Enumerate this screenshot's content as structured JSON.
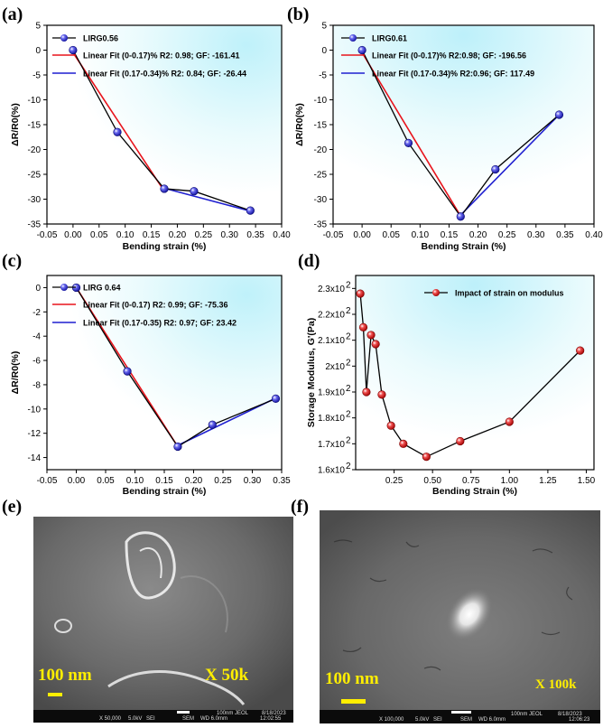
{
  "panel_labels": [
    "(a)",
    "(b)",
    "(c)",
    "(d)",
    "(e)",
    "(f)"
  ],
  "colors": {
    "marker_blue": "#2b2bd6",
    "marker_red": "#e31b1b",
    "fit_red": "#e8141c",
    "fit_blue": "#1f1fd0",
    "bg_glow": "#bff1fa",
    "scale_text": "#ffee00"
  },
  "chart_data": [
    {
      "type": "line",
      "panel": "(a)",
      "xlabel": "Bending strain (%)",
      "ylabel": "ΔR/R0(%)",
      "xlim": [
        -0.05,
        0.4
      ],
      "ylim": [
        -35,
        5
      ],
      "xticks": [
        "-0.05",
        "0.00",
        "0.05",
        "0.10",
        "0.15",
        "0.20",
        "0.25",
        "0.30",
        "0.35",
        "0.40"
      ],
      "yticks": [
        "5",
        "0",
        "-5",
        "-10",
        "-15",
        "-20",
        "-25",
        "-30",
        "-35"
      ],
      "series": [
        {
          "name": "LIRG0.56",
          "x": [
            0.0,
            0.085,
            0.175,
            0.232,
            0.34
          ],
          "y": [
            0.0,
            -16.5,
            -27.9,
            -28.4,
            -32.3
          ]
        }
      ],
      "fits": [
        {
          "name": "Linear Fit (0-0.17)% R2: 0.98; GF: -161.41",
          "x": [
            0.0,
            0.175
          ],
          "y": [
            -0.5,
            -28.4
          ]
        },
        {
          "name": "Linear Fit (0.17-0.34)% R2: 0.84; GF: -26.44",
          "x": [
            0.175,
            0.34
          ],
          "y": [
            -27.8,
            -32.4
          ]
        }
      ]
    },
    {
      "type": "line",
      "panel": "(b)",
      "xlabel": "Bending Strain (%)",
      "ylabel": "ΔR/R0(%)",
      "xlim": [
        -0.05,
        0.4
      ],
      "ylim": [
        -35,
        5
      ],
      "xticks": [
        "-0.05",
        "0.00",
        "0.05",
        "0.10",
        "0.15",
        "0.20",
        "0.25",
        "0.30",
        "0.35",
        "0.40"
      ],
      "yticks": [
        "5",
        "0",
        "-5",
        "-10",
        "-15",
        "-20",
        "-25",
        "-30",
        "-35"
      ],
      "series": [
        {
          "name": "LIRG0.61",
          "x": [
            0.0,
            0.08,
            0.17,
            0.23,
            0.34
          ],
          "y": [
            0.0,
            -18.7,
            -33.5,
            -24.0,
            -13.0
          ]
        }
      ],
      "fits": [
        {
          "name": "Linear Fit (0-0.17)% R2:0.98; GF: -196.56",
          "x": [
            0.0,
            0.17
          ],
          "y": [
            -0.5,
            -33.4
          ]
        },
        {
          "name": "Linear Fit (0.17-0.34)% R2:0.96; GF: 117.49",
          "x": [
            0.17,
            0.34
          ],
          "y": [
            -33.2,
            -13.0
          ]
        }
      ]
    },
    {
      "type": "line",
      "panel": "(c)",
      "xlabel": "Bending strain (%)",
      "ylabel": "ΔR/R0(%)",
      "xlim": [
        -0.05,
        0.35
      ],
      "ylim": [
        -15,
        1
      ],
      "xticks": [
        "-0.05",
        "0.00",
        "0.05",
        "0.10",
        "0.15",
        "0.20",
        "0.25",
        "0.30",
        "0.35"
      ],
      "yticks": [
        "0",
        "-2",
        "-4",
        "-6",
        "-8",
        "-10",
        "-12",
        "-14"
      ],
      "series": [
        {
          "name": "LIRG 0.64",
          "x": [
            0.0,
            0.087,
            0.173,
            0.232,
            0.34
          ],
          "y": [
            0.0,
            -6.9,
            -13.1,
            -11.3,
            -9.15
          ]
        }
      ],
      "fits": [
        {
          "name": "Linear Fit (0-0.17) R2: 0.99; GF: -75.36",
          "x": [
            0.0,
            0.173
          ],
          "y": [
            0.0,
            -13.1
          ]
        },
        {
          "name": "Linear Fit (0.17-0.35) R2: 0.97; GF: 23.42",
          "x": [
            0.173,
            0.34
          ],
          "y": [
            -13.0,
            -9.1
          ]
        }
      ]
    },
    {
      "type": "line",
      "panel": "(d)",
      "xlabel": "Bending Strain (%)",
      "ylabel": "Storage Modulus, G'(Pa)",
      "xlim": [
        0.0,
        1.55
      ],
      "ylim": [
        160,
        235
      ],
      "xticks": [
        "0.25",
        "0.50",
        "0.75",
        "1.00",
        "1.25",
        "1.50"
      ],
      "ytick_values": [
        230,
        220,
        210,
        200,
        190,
        180,
        170,
        160
      ],
      "ytick_base": "2.30",
      "ytick_labels": [
        "2.3x10",
        "2.2x10",
        "2.1x10",
        "2x10",
        "1.9x10",
        "1.8x10",
        "1.7x10",
        "1.6x10"
      ],
      "ytick_exp": "2",
      "series": [
        {
          "name": "Impact of strain on modulus",
          "x": [
            0.03,
            0.05,
            0.07,
            0.1,
            0.13,
            0.17,
            0.23,
            0.31,
            0.46,
            0.68,
            1.0,
            1.46
          ],
          "y": [
            228,
            215,
            190,
            212,
            208.5,
            189,
            177,
            170,
            165,
            171,
            178.5,
            206
          ]
        }
      ]
    }
  ],
  "sem": [
    {
      "panel": "(e)",
      "scale_text": "100 nm",
      "mag_text": "X 50k",
      "footer": [
        "X 50,000",
        "5.0kV",
        "SEI",
        "SEM",
        "WD 6.0mm",
        "12:02:55",
        "100nm JEOL",
        "8/18/2023"
      ]
    },
    {
      "panel": "(f)",
      "scale_text": "100 nm",
      "mag_text": "X 100k",
      "footer": [
        "X 100,000",
        "5.0kV",
        "SEI",
        "SEM",
        "WD 6.0mm",
        "12:06:23",
        "100nm JEOL",
        "8/18/2023"
      ]
    }
  ]
}
